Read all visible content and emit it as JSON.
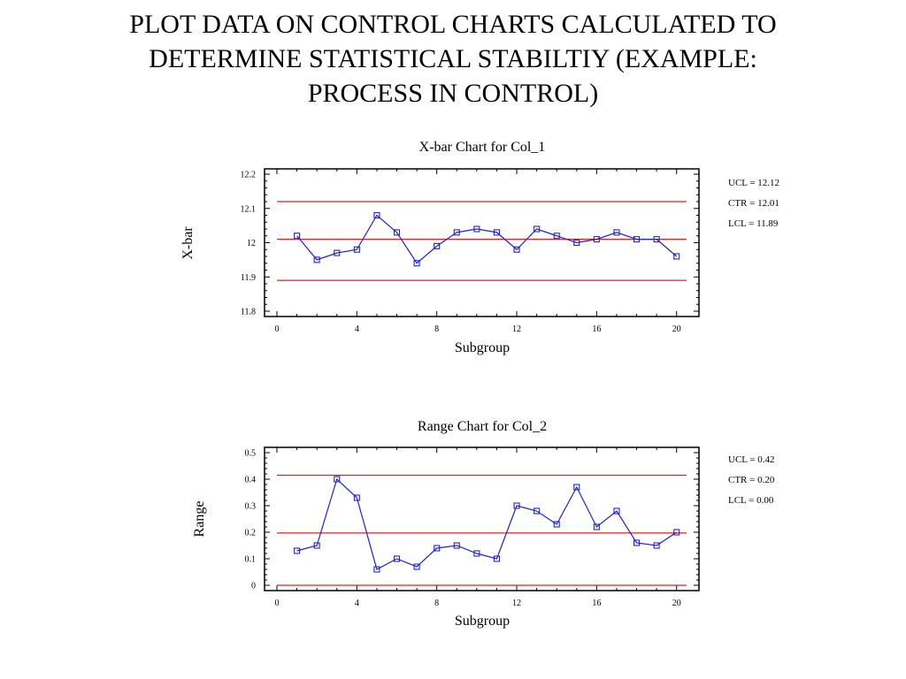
{
  "slide": {
    "title_lines": [
      "PLOT DATA ON CONTROL CHARTS CALCULATED TO",
      "DETERMINE STATISTICAL STABILTIY (EXAMPLE:",
      "PROCESS IN CONTROL)"
    ]
  },
  "colors": {
    "series": "#2222cc",
    "limits": "#e02020",
    "axis": "#000000"
  },
  "chart_data": [
    {
      "type": "line",
      "title": "X-bar Chart for Col_1",
      "xlabel": "Subgroup",
      "ylabel": "X-bar",
      "x": [
        1,
        2,
        3,
        4,
        5,
        6,
        7,
        8,
        9,
        10,
        11,
        12,
        13,
        14,
        15,
        16,
        17,
        18,
        19,
        20
      ],
      "values": [
        12.02,
        11.95,
        11.97,
        11.98,
        12.08,
        12.03,
        11.94,
        11.99,
        12.03,
        12.04,
        12.03,
        11.98,
        12.04,
        12.02,
        12.0,
        12.01,
        12.03,
        12.01,
        12.01,
        11.96
      ],
      "xlim": [
        0,
        20.5
      ],
      "ylim": [
        11.8,
        12.2
      ],
      "xticks": [
        0,
        4,
        8,
        12,
        16,
        20
      ],
      "yticks": [
        11.8,
        11.9,
        12,
        12.1,
        12.2
      ],
      "ytick_labels": [
        "11.8",
        "11.9",
        "12",
        "12.1",
        "12.2"
      ],
      "limits": {
        "ucl": 12.12,
        "ctr": 12.01,
        "lcl": 11.89
      },
      "limit_labels": [
        "UCL = 12.12",
        "CTR = 12.01",
        "LCL = 11.89"
      ],
      "marker": "square"
    },
    {
      "type": "line",
      "title": "Range Chart for Col_2",
      "xlabel": "Subgroup",
      "ylabel": "Range",
      "x": [
        1,
        2,
        3,
        4,
        5,
        6,
        7,
        8,
        9,
        10,
        11,
        12,
        13,
        14,
        15,
        16,
        17,
        18,
        19,
        20
      ],
      "values": [
        0.13,
        0.15,
        0.4,
        0.33,
        0.06,
        0.1,
        0.07,
        0.14,
        0.15,
        0.12,
        0.1,
        0.3,
        0.28,
        0.23,
        0.37,
        0.22,
        0.28,
        0.16,
        0.15,
        0.2
      ],
      "xlim": [
        0,
        20.5
      ],
      "ylim": [
        0,
        0.5
      ],
      "xticks": [
        0,
        4,
        8,
        12,
        16,
        20
      ],
      "yticks": [
        0,
        0.1,
        0.2,
        0.3,
        0.4,
        0.5
      ],
      "ytick_labels": [
        "0",
        "0.1",
        "0.2",
        "0.3",
        "0.4",
        "0.5"
      ],
      "limits": {
        "ucl": 0.415,
        "ctr": 0.197,
        "lcl": 0.0
      },
      "limit_labels": [
        "UCL = 0.42",
        "CTR = 0.20",
        "LCL = 0.00"
      ],
      "marker": "square"
    }
  ]
}
